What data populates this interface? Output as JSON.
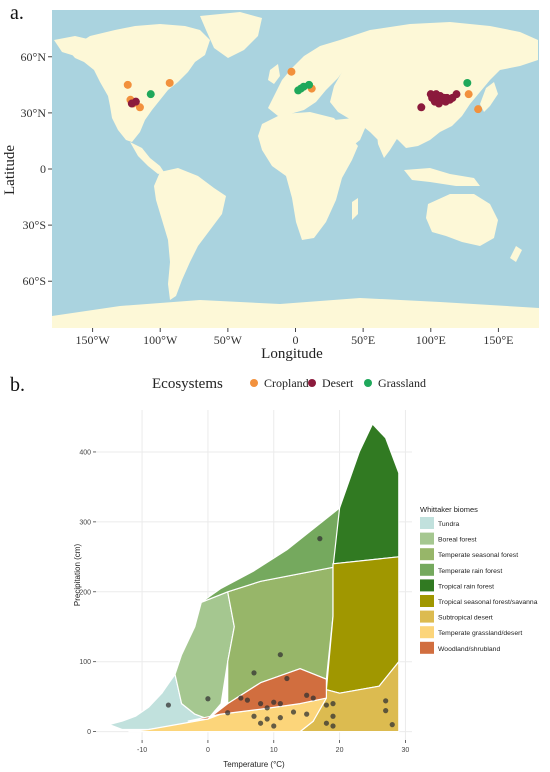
{
  "panels": {
    "a": "a.",
    "b": "b."
  },
  "colors": {
    "ocean": "#aad3df",
    "land": "#fdf8d7",
    "Cropland": "#f2913d",
    "Desert": "#8b1a3c",
    "Grassland": "#1fa85b",
    "Tundra": "#c1e1dd",
    "Boreal forest": "#a5c790",
    "Temperate seasonal forest": "#97b669",
    "Temperate rain forest": "#75a95e",
    "Tropical rain forest": "#317a22",
    "Tropical seasonal forest/savanna": "#a09700",
    "Subtropical desert": "#dcbb50",
    "Temperate grassland/desert": "#fcd57a",
    "Woodland/shrubland": "#d16e3f"
  },
  "chart_data": [
    {
      "type": "scatter",
      "subtype": "world map",
      "xlabel": "Longitude",
      "ylabel": "Latitude",
      "x_ticks": [
        "150°W",
        "100°W",
        "50°W",
        "0",
        "50°E",
        "100°E",
        "150°E"
      ],
      "x_tick_values": [
        -150,
        -100,
        -50,
        0,
        50,
        100,
        150
      ],
      "y_ticks": [
        "60°N",
        "30°N",
        "0",
        "30°S",
        "60°S"
      ],
      "y_tick_values": [
        60,
        30,
        0,
        -30,
        -60
      ],
      "xlim": [
        -180,
        180
      ],
      "ylim": [
        -85,
        85
      ],
      "legend_title": "Ecosystems",
      "legend_position": "top",
      "legend": [
        "Cropland",
        "Desert",
        "Grassland"
      ],
      "series": [
        {
          "name": "Cropland",
          "points": [
            [
              -124,
              45
            ],
            [
              -122,
              37
            ],
            [
              -120,
              35
            ],
            [
              -115,
              33
            ],
            [
              -93,
              46
            ],
            [
              -3,
              52
            ],
            [
              12,
              43
            ],
            [
              128,
              40
            ],
            [
              135,
              32
            ]
          ]
        },
        {
          "name": "Desert",
          "points": [
            [
              -121,
              35
            ],
            [
              -118,
              36
            ],
            [
              93,
              33
            ],
            [
              100,
              40
            ],
            [
              101,
              38
            ],
            [
              103,
              36
            ],
            [
              104,
              40
            ],
            [
              105,
              38
            ],
            [
              106,
              35
            ],
            [
              107,
              39
            ],
            [
              109,
              37
            ],
            [
              110,
              38
            ],
            [
              111,
              36
            ],
            [
              112,
              38
            ],
            [
              114,
              37
            ],
            [
              116,
              38
            ],
            [
              119,
              40
            ]
          ]
        },
        {
          "name": "Grassland",
          "points": [
            [
              -107,
              40
            ],
            [
              2,
              42
            ],
            [
              4,
              43
            ],
            [
              6,
              44
            ],
            [
              10,
              45
            ],
            [
              127,
              46
            ]
          ]
        }
      ]
    },
    {
      "type": "area",
      "subtype": "whittaker biome diagram",
      "xlabel": "Temperature (°C)",
      "ylabel": "Precipitation (cm)",
      "x_ticks": [
        "-10",
        "0",
        "10",
        "20",
        "30"
      ],
      "x_tick_values": [
        -10,
        0,
        10,
        20,
        30
      ],
      "y_ticks": [
        "0",
        "100",
        "200",
        "300",
        "400"
      ],
      "y_tick_values": [
        0,
        100,
        200,
        300,
        400
      ],
      "xlim": [
        -17,
        31
      ],
      "ylim": [
        -12,
        460
      ],
      "legend_title": "Whittaker biomes",
      "legend_position": "right",
      "legend": [
        "Tundra",
        "Boreal forest",
        "Temperate seasonal forest",
        "Temperate rain forest",
        "Tropical rain forest",
        "Tropical seasonal forest/savanna",
        "Subtropical desert",
        "Temperate grassland/desert",
        "Woodland/shrubland"
      ],
      "points": [
        [
          -6,
          38
        ],
        [
          0,
          47
        ],
        [
          3,
          27
        ],
        [
          5,
          48
        ],
        [
          6,
          45
        ],
        [
          7,
          84
        ],
        [
          7,
          22
        ],
        [
          8,
          40
        ],
        [
          8,
          12
        ],
        [
          9,
          34
        ],
        [
          9,
          18
        ],
        [
          10,
          42
        ],
        [
          10,
          8
        ],
        [
          11,
          40
        ],
        [
          11,
          20
        ],
        [
          11,
          110
        ],
        [
          12,
          76
        ],
        [
          13,
          28
        ],
        [
          15,
          52
        ],
        [
          15,
          25
        ],
        [
          16,
          48
        ],
        [
          17,
          276
        ],
        [
          18,
          38
        ],
        [
          18,
          12
        ],
        [
          19,
          22
        ],
        [
          19,
          40
        ],
        [
          19,
          8
        ],
        [
          27,
          44
        ],
        [
          27,
          30
        ],
        [
          28,
          10
        ]
      ]
    }
  ]
}
